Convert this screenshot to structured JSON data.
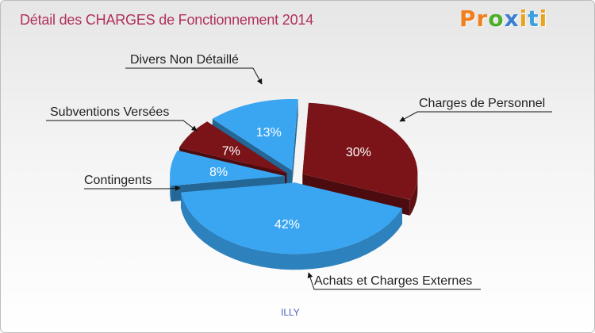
{
  "chart_data": {
    "type": "pie",
    "title": "Détail des CHARGES de Fonctionnement 2014",
    "subtitle": "ILLY",
    "unit": "%",
    "slices": [
      {
        "name": "Charges de Personnel",
        "value": 30,
        "label": "30%",
        "color": "#7a1418"
      },
      {
        "name": "Achats et Charges Externes",
        "value": 42,
        "label": "42%",
        "color": "#3aa6f2"
      },
      {
        "name": "Contingents",
        "value": 8,
        "label": "8%",
        "color": "#3aa6f2"
      },
      {
        "name": "Subventions Versées",
        "value": 7,
        "label": "7%",
        "color": "#7a1418"
      },
      {
        "name": "Divers Non Détaillé",
        "value": 13,
        "label": "13%",
        "color": "#3aa6f2"
      }
    ]
  },
  "logo": {
    "letters": [
      "P",
      "r",
      "o",
      "x",
      "i",
      "t",
      "i"
    ],
    "colors": [
      "#f07f1e",
      "#f07f1e",
      "#4caf2a",
      "#3a7fd5",
      "#e8a41c",
      "#3aa0e0",
      "#e8a41c"
    ]
  }
}
